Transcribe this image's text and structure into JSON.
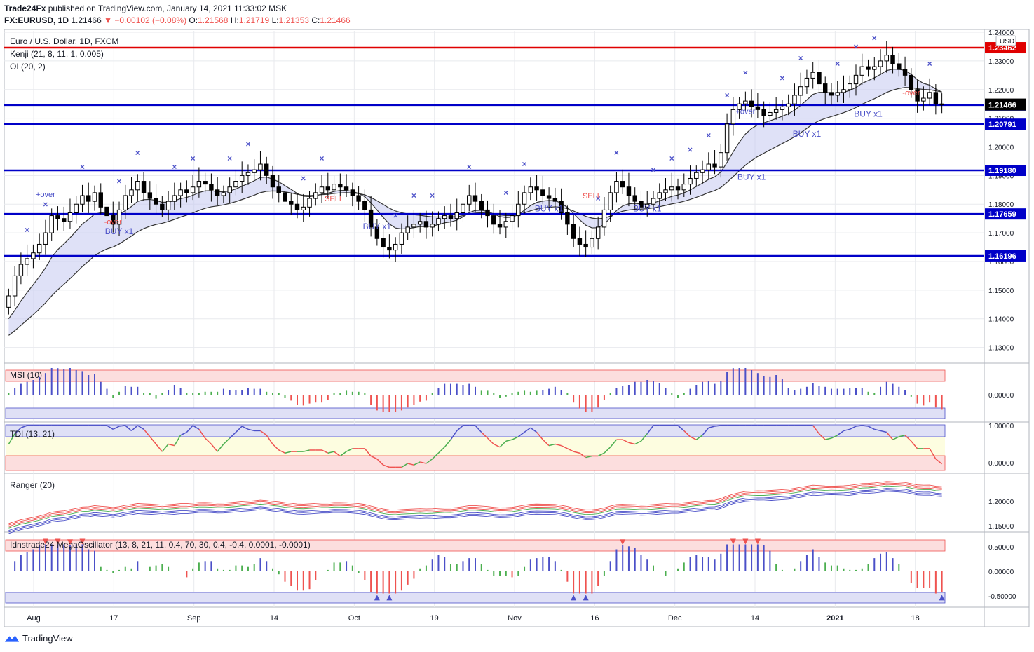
{
  "header": {
    "publisher": "Trade24Fx",
    "published_text": "published on TradingView.com, January 14, 2021 11:33:02 MSK",
    "symbol": "FX:EURUSD, 1D",
    "last": "1.21466",
    "change": "−0.00102 (−0.08%)",
    "o_label": "O:",
    "o_val": "1.21568",
    "h_label": "H:",
    "h_val": "1.21719",
    "l_label": "L:",
    "l_val": "1.21353",
    "c_label": "C:",
    "c_val": "1.21466"
  },
  "main_legend": {
    "title": "Euro / U.S. Dollar, 1D, FXCM",
    "kenji": "Kenji (21, 8, 11, 1, 0.005)",
    "oi": "OI (20, 2)"
  },
  "panels": {
    "msi": "MSI (10)",
    "tdi": "TDI (13, 21)",
    "ranger": "Ranger (20)",
    "mega": "Idnstrade24 MegaOscillator (13, 8, 21, 11, 0.4, 70, 30, 0.4, -0.4, 0.0001, -0.0001)"
  },
  "footer": {
    "brand": "TradingView"
  },
  "colors": {
    "up_candle": "#ffffff",
    "down_candle": "#000000",
    "resistance": "#e00000",
    "support": "#0000c8",
    "marker": "#4b50c8",
    "grid": "#e8eaee",
    "price_tag_blue": "#0000c8",
    "price_tag_black": "#000000",
    "price_tag_red": "#e00000"
  },
  "chart_data": [
    {
      "type": "candlestick",
      "title": "Euro / U.S. Dollar, 1D, FXCM",
      "ylim": [
        1.125,
        1.2405
      ],
      "y_ticks": [
        "1.24000",
        "1.23000",
        "1.22000",
        "1.21000",
        "1.20000",
        "1.19000",
        "1.18000",
        "1.17000",
        "1.16000",
        "1.15000",
        "1.14000",
        "1.13000"
      ],
      "x_ticks": [
        "Aug",
        "17",
        "Sep",
        "14",
        "Oct",
        "19",
        "Nov",
        "16",
        "Dec",
        "14",
        "2021",
        "18"
      ],
      "horizontal_levels": [
        {
          "value": 1.23462,
          "label": "1.23462",
          "color": "resistance"
        },
        {
          "value": 1.2146,
          "label": "1.21460",
          "color": "support"
        },
        {
          "value": 1.20791,
          "label": "1.20791",
          "color": "support"
        },
        {
          "value": 1.1918,
          "label": "1.19180",
          "color": "support"
        },
        {
          "value": 1.17659,
          "label": "1.17659",
          "color": "support"
        },
        {
          "value": 1.16196,
          "label": "1.16196",
          "color": "support"
        }
      ],
      "last_price": {
        "value": 1.21466,
        "label": "1.21466"
      },
      "currency": "USD",
      "close_series": [
        1.148,
        1.155,
        1.159,
        1.161,
        1.163,
        1.166,
        1.17,
        1.176,
        1.175,
        1.174,
        1.177,
        1.18,
        1.183,
        1.181,
        1.184,
        1.179,
        1.176,
        1.173,
        1.178,
        1.183,
        1.185,
        1.188,
        1.184,
        1.182,
        1.18,
        1.178,
        1.181,
        1.183,
        1.185,
        1.184,
        1.186,
        1.188,
        1.187,
        1.185,
        1.183,
        1.184,
        1.186,
        1.188,
        1.19,
        1.191,
        1.192,
        1.194,
        1.19,
        1.186,
        1.184,
        1.181,
        1.18,
        1.178,
        1.179,
        1.182,
        1.184,
        1.186,
        1.185,
        1.187,
        1.186,
        1.185,
        1.183,
        1.181,
        1.178,
        1.172,
        1.168,
        1.165,
        1.164,
        1.166,
        1.17,
        1.172,
        1.173,
        1.174,
        1.172,
        1.173,
        1.175,
        1.176,
        1.175,
        1.177,
        1.18,
        1.183,
        1.181,
        1.178,
        1.176,
        1.173,
        1.172,
        1.174,
        1.176,
        1.18,
        1.184,
        1.186,
        1.185,
        1.183,
        1.182,
        1.181,
        1.177,
        1.173,
        1.168,
        1.166,
        1.165,
        1.168,
        1.172,
        1.178,
        1.184,
        1.188,
        1.186,
        1.183,
        1.181,
        1.179,
        1.18,
        1.182,
        1.184,
        1.185,
        1.186,
        1.185,
        1.187,
        1.189,
        1.191,
        1.192,
        1.194,
        1.193,
        1.198,
        1.208,
        1.213,
        1.215,
        1.216,
        1.214,
        1.213,
        1.211,
        1.212,
        1.213,
        1.214,
        1.215,
        1.218,
        1.221,
        1.224,
        1.226,
        1.222,
        1.219,
        1.218,
        1.219,
        1.22,
        1.222,
        1.225,
        1.228,
        1.227,
        1.228,
        1.23,
        1.232,
        1.229,
        1.227,
        1.225,
        1.22,
        1.216,
        1.217,
        1.219,
        1.215,
        1.2147
      ]
    },
    {
      "type": "bar",
      "name": "MSI (10)",
      "ylim": [
        -0.05,
        0.05
      ],
      "y_ticks": [
        "0.00000"
      ]
    },
    {
      "type": "line",
      "name": "TDI (13, 21)",
      "ylim": [
        -0.1,
        1.05
      ],
      "y_ticks": [
        "1.00000",
        "0.00000"
      ]
    },
    {
      "type": "line",
      "name": "Ranger (20)",
      "ylim": [
        1.14,
        1.25
      ],
      "y_ticks": [
        "1.20000",
        "1.15000"
      ]
    },
    {
      "type": "bar",
      "name": "Idnstrade24 MegaOscillator (13, 8, 21, 11, 0.4, 70, 30, 0.4, -0.4, 0.0001, -0.0001)",
      "ylim": [
        -0.65,
        0.7
      ],
      "y_ticks": [
        "0.50000",
        "0.00000",
        "-0.50000"
      ]
    }
  ],
  "annotations": {
    "buy": "BUY x1",
    "sell": "SELL",
    "sell1": "SELL x1",
    "over_plus": "+over",
    "over_minus": "-over"
  }
}
